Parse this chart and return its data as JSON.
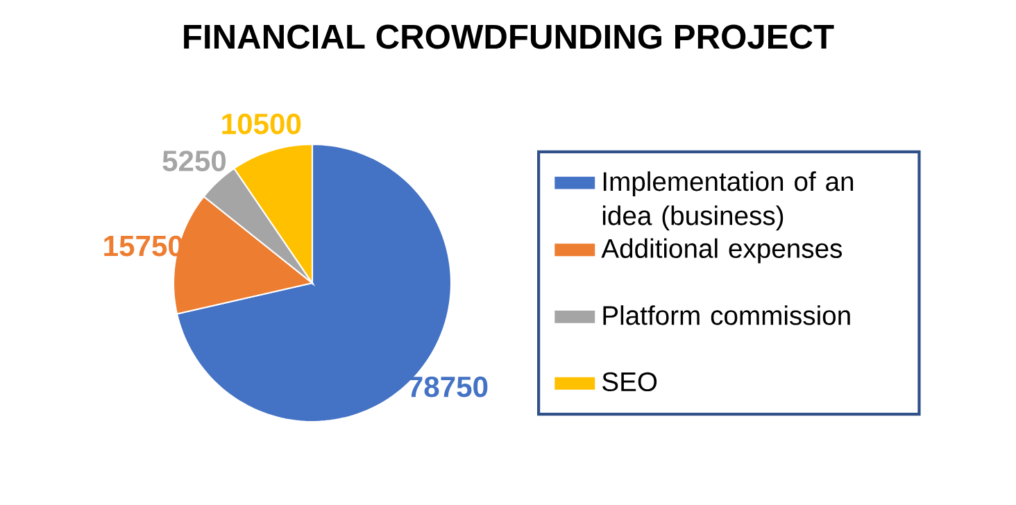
{
  "chart_data": {
    "type": "pie",
    "title": "FINANCIAL CROWDFUNDING PROJECT",
    "categories": [
      "Implementation of an idea (business)",
      "Additional expenses",
      "Platform commission",
      "SEO"
    ],
    "values": [
      78750,
      15750,
      5250,
      10500
    ],
    "colors": [
      "#4472c4",
      "#ed7d31",
      "#a5a5a5",
      "#ffc000"
    ],
    "data_labels": true,
    "legend": "right"
  }
}
